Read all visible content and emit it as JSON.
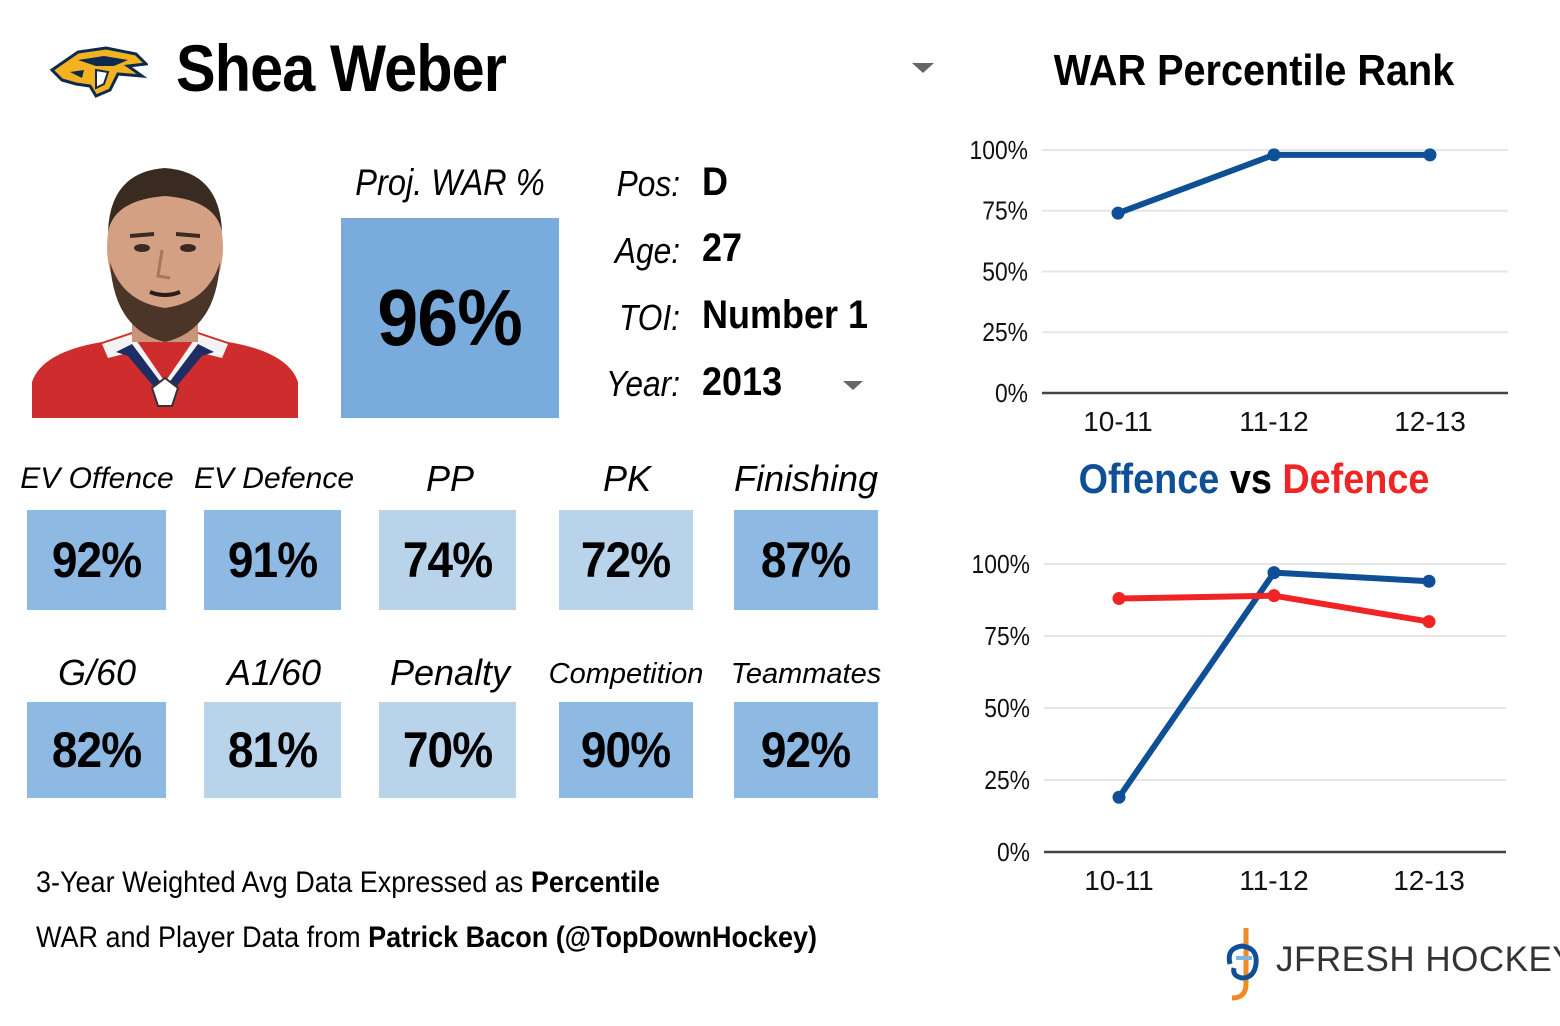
{
  "player": {
    "name": "Shea Weber",
    "proj_label": "Proj. WAR %",
    "proj_value": "96%",
    "info": {
      "pos_label": "Pos:",
      "pos_value": "D",
      "age_label": "Age:",
      "age_value": "27",
      "toi_label": "TOI:",
      "toi_value": "Number 1",
      "year_label": "Year:",
      "year_value": "2013"
    }
  },
  "colors": {
    "tile_dark": "#8db9e3",
    "tile_light": "#b8d3ea",
    "offence": "#0e4f96",
    "defence": "#ef2525"
  },
  "stats_row1": [
    {
      "label": "EV Offence",
      "value": "92%",
      "shade": "dark"
    },
    {
      "label": "EV Defence",
      "value": "91%",
      "shade": "dark"
    },
    {
      "label": "PP",
      "value": "74%",
      "shade": "light"
    },
    {
      "label": "PK",
      "value": "72%",
      "shade": "light"
    },
    {
      "label": "Finishing",
      "value": "87%",
      "shade": "dark"
    }
  ],
  "stats_row2": [
    {
      "label": "G/60",
      "value": "82%",
      "shade": "dark"
    },
    {
      "label": "A1/60",
      "value": "81%",
      "shade": "light"
    },
    {
      "label": "Penalty",
      "value": "70%",
      "shade": "light"
    },
    {
      "label": "Competition",
      "value": "90%",
      "shade": "dark"
    },
    {
      "label": "Teammates",
      "value": "92%",
      "shade": "dark"
    }
  ],
  "footer": {
    "line1_text": "3-Year Weighted Avg Data Expressed as ",
    "line1_bold": "Percentile",
    "line2_text": "WAR and Player Data from ",
    "line2_bold": "Patrick Bacon (@TopDownHockey)"
  },
  "brand": "JFRESH HOCKEY",
  "chart_data": [
    {
      "type": "line",
      "title": "WAR Percentile Rank",
      "x": [
        "10-11",
        "11-12",
        "12-13"
      ],
      "yticks": [
        "0%",
        "25%",
        "50%",
        "75%",
        "100%"
      ],
      "ylim": [
        0,
        100
      ],
      "grid": true,
      "series": [
        {
          "values": [
            74,
            98,
            98
          ],
          "color": "#0e4f96"
        }
      ]
    },
    {
      "type": "line",
      "title_parts": {
        "offence": "Offence",
        "vs": "vs",
        "defence": "Defence"
      },
      "x": [
        "10-11",
        "11-12",
        "12-13"
      ],
      "yticks": [
        "0%",
        "25%",
        "50%",
        "75%",
        "100%"
      ],
      "ylim": [
        0,
        100
      ],
      "grid": true,
      "series": [
        {
          "values": [
            19,
            97,
            94
          ],
          "color": "#0e4f96"
        },
        {
          "values": [
            88,
            89,
            80
          ],
          "color": "#ef2525"
        }
      ]
    }
  ]
}
